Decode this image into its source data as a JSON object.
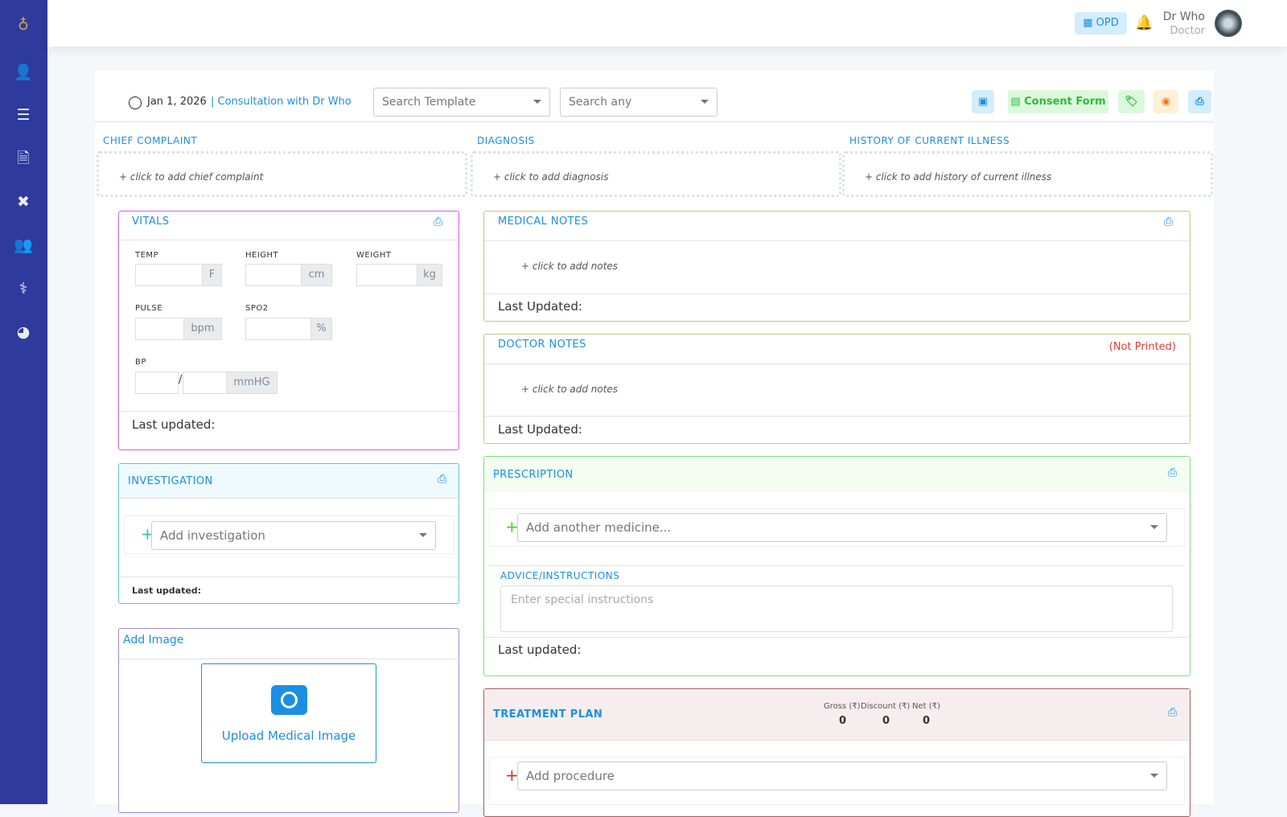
{
  "sidebar": {
    "items": [
      {
        "icon": "logo-icon"
      },
      {
        "icon": "user-clock-icon"
      },
      {
        "icon": "list-icon"
      },
      {
        "icon": "invoice-icon"
      },
      {
        "icon": "tools-icon"
      },
      {
        "icon": "users-icon"
      },
      {
        "icon": "doctor-icon"
      },
      {
        "icon": "pie-chart-icon"
      }
    ]
  },
  "header": {
    "opd_label": "OPD",
    "user_name": "Dr Who",
    "user_role": "Doctor"
  },
  "toolbar": {
    "date": "Jan 1, 2026",
    "consultation": "| Consultation with Dr Who",
    "template_placeholder": "Search Template",
    "search_placeholder": "Search any",
    "consent_label": "Consent Form"
  },
  "sections": {
    "chief_complaint": {
      "title": "CHIEF COMPLAINT",
      "placeholder": "+ click to add chief complaint"
    },
    "diagnosis": {
      "title": "DIAGNOSIS",
      "placeholder": "+ click to add diagnosis"
    },
    "history": {
      "title": "HISTORY OF CURRENT ILLNESS",
      "placeholder": "+ click to add history of current illness"
    }
  },
  "vitals": {
    "title": "VITALS",
    "temp": "TEMP",
    "temp_unit": "F",
    "height": "HEIGHT",
    "height_unit": "cm",
    "weight": "WEIGHT",
    "weight_unit": "kg",
    "pulse": "PULSE",
    "pulse_unit": "bpm",
    "spo2": "SPO2",
    "spo2_unit": "%",
    "bp": "BP",
    "bp_sep": "/",
    "bp_unit": "mmHG",
    "last_updated": "Last updated:"
  },
  "investigation": {
    "title": "INVESTIGATION",
    "placeholder": "Add investigation",
    "last_updated": "Last updated:"
  },
  "add_image": {
    "title": "Add Image",
    "upload_label": "Upload Medical Image"
  },
  "medical_notes": {
    "title": "MEDICAL NOTES",
    "placeholder": "+ click to add notes",
    "last_updated": "Last Updated:"
  },
  "doctor_notes": {
    "title": "DOCTOR NOTES",
    "badge": "(Not Printed)",
    "placeholder": "+ click to add notes",
    "last_updated": "Last Updated:"
  },
  "prescription": {
    "title": "PRESCRIPTION",
    "placeholder": "Add another medicine...",
    "advice_title": "ADVICE/INSTRUCTIONS",
    "advice_placeholder": "Enter special instructions",
    "last_updated": "Last updated:"
  },
  "treatment_plan": {
    "title": "TREATMENT PLAN",
    "gross_label": "Gross (₹)",
    "discount_label": "Discount (₹)",
    "net_label": "Net (₹)",
    "gross": "0",
    "discount": "0",
    "net": "0",
    "placeholder": "Add procedure"
  },
  "colors": {
    "sidebar": "#2e3a9c",
    "accent": "#1a8fe3",
    "vitals_border": "#d35ee0",
    "investigation_border": "#5bc6dd",
    "prescription_border": "#7fe07a",
    "treatment_border": "#a85c5c",
    "not_printed": "#e53935"
  }
}
